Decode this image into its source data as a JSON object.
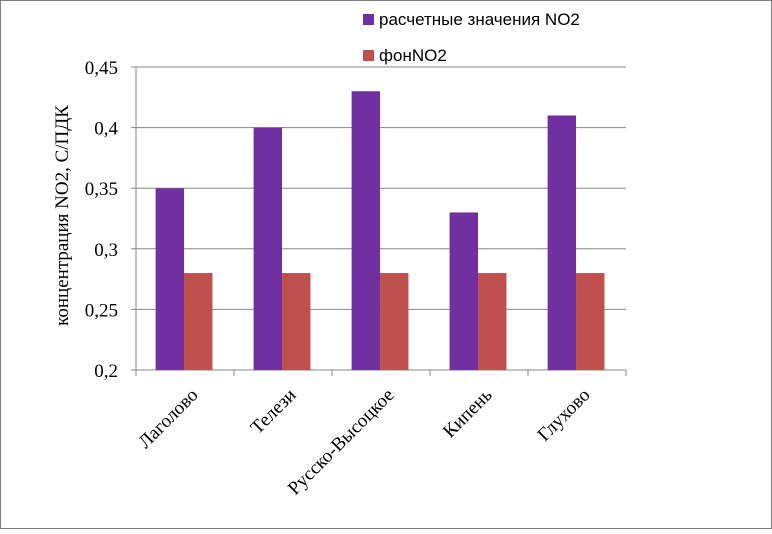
{
  "chart_data": {
    "type": "bar",
    "categories": [
      "Лаголово",
      "Телези",
      "Русско-Высоцкое",
      "Кипень",
      "Глухово"
    ],
    "series": [
      {
        "name": "расчетные значения NO2",
        "values": [
          0.35,
          0.4,
          0.43,
          0.33,
          0.41
        ],
        "color": "#7030A0"
      },
      {
        "name": "фонNO2",
        "values": [
          0.28,
          0.28,
          0.28,
          0.28,
          0.28
        ],
        "color": "#C0504D"
      }
    ],
    "title": "",
    "xlabel": "",
    "ylabel": "концентрация  NO2, С/ПДК",
    "ylim": [
      0.2,
      0.45
    ],
    "yticks": [
      0.2,
      0.25,
      0.3,
      0.35,
      0.4,
      0.45
    ],
    "ytick_labels": [
      "0,2",
      "0,25",
      "0,3",
      "0,35",
      "0,4",
      "0,45"
    ],
    "grid": true,
    "legend_position": "top-right"
  }
}
